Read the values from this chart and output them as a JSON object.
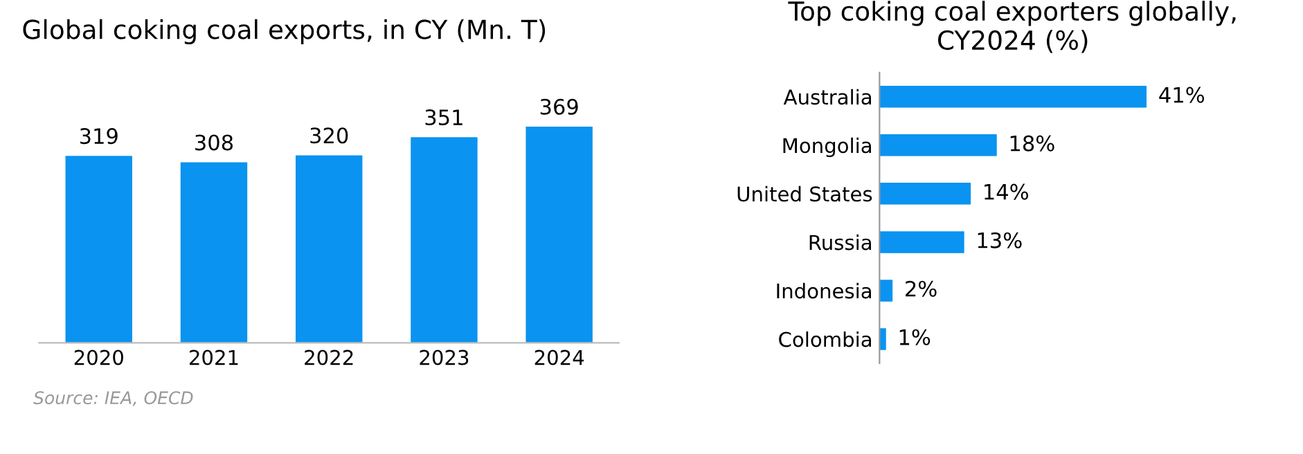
{
  "chart_data": [
    {
      "type": "bar",
      "title": "Global coking coal exports, in CY (Mn. T)",
      "categories": [
        "2020",
        "2021",
        "2022",
        "2023",
        "2024"
      ],
      "values": [
        319,
        308,
        320,
        351,
        369
      ],
      "color": "#0a93f0",
      "tick_labels": "x",
      "data_labels": true,
      "grid": false,
      "legend": false,
      "annotations": [
        "Source: IEA, OECD"
      ]
    },
    {
      "type": "bar",
      "orientation": "horizontal",
      "title": "Top coking coal exporters globally,\nCY2024 (%)",
      "categories": [
        "Australia",
        "Mongolia",
        "United States",
        "Russia",
        "Indonesia",
        "Colombia"
      ],
      "values": [
        41,
        18,
        14,
        13,
        2,
        1
      ],
      "value_labels": [
        "41%",
        "18%",
        "14%",
        "13%",
        "2%",
        "1%"
      ],
      "color": "#0a93f0",
      "xlim": [
        0,
        41
      ],
      "tick_labels": "y",
      "grid": false,
      "legend": false
    }
  ]
}
